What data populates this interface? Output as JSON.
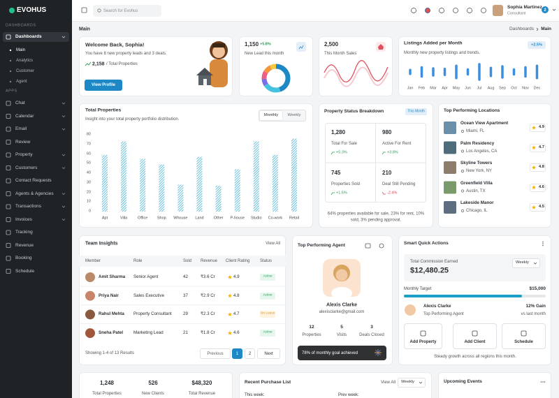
{
  "sidebar": {
    "logo": "EVOHUS",
    "dashboards_label": "DASHBOARDS",
    "dashboards": "Dashboards",
    "dashboard_items": [
      "Main",
      "Analytics",
      "Customer",
      "Agent"
    ],
    "apps_label": "APPS",
    "apps": [
      "Chat",
      "Calendar",
      "Email",
      "Review",
      "Property",
      "Customers",
      "Contact Requests",
      "Agents & Agencies",
      "Transactions",
      "Invoices",
      "Tracking",
      "Revenue",
      "Booking",
      "Schedule"
    ]
  },
  "topbar": {
    "search_placeholder": "Search for Evohus",
    "user_name": "Sophia Martinez",
    "user_role": "Consultant",
    "notifications": 2
  },
  "breadcrumb": {
    "page_title": "Main",
    "trail": [
      "Dashboards",
      "Main"
    ]
  },
  "welcome": {
    "title": "Welcome Back, Sophia!",
    "message": "You have 8 new property leads and 3 deals.",
    "total": "2,158",
    "total_label": "/ Total Properties",
    "button": "View Profile"
  },
  "new_leads": {
    "value": "1,150",
    "change": "+5.8%",
    "label": "New Lead this month"
  },
  "sales": {
    "value": "2,500",
    "label": "This Month Sales"
  },
  "chart_data": [
    {
      "type": "bar",
      "title": "Listings Added per Month",
      "subtitle": "Monthly new property listings and trends.",
      "badge": "+2.5%",
      "categories": [
        "Jan",
        "Feb",
        "Mar",
        "Apr",
        "May",
        "Jun",
        "Jul",
        "Aug",
        "Sep",
        "Oct",
        "Nov",
        "Dec"
      ],
      "values": [
        30,
        55,
        45,
        40,
        70,
        35,
        85,
        50,
        65,
        35,
        55,
        70
      ],
      "color": "#3b8ee0"
    },
    {
      "type": "bar",
      "title": "Total Properties",
      "subtitle": "Insight into your total property portfolio distribution.",
      "toggle": [
        "Monthly",
        "Weekly"
      ],
      "categories": [
        "Apt",
        "Villa",
        "Office",
        "Shop",
        "Whouse",
        "Land",
        "Other",
        "P-house",
        "Studio",
        "Co-work",
        "Retail"
      ],
      "values": [
        59,
        73,
        55,
        49,
        28,
        57,
        27,
        44,
        73,
        59,
        76
      ],
      "ylim": [
        0,
        80
      ],
      "yticks": [
        0,
        10,
        20,
        30,
        40,
        50,
        60,
        70,
        80
      ],
      "color": "#2aa7cf"
    }
  ],
  "status": {
    "title": "Property Status Breakdown",
    "badge": "This Month",
    "stats": [
      {
        "value": "1,280",
        "label": "Total For Sale",
        "change": "+5.3%"
      },
      {
        "value": 980,
        "label": "Active For Rent",
        "change": "+3.8%"
      },
      {
        "value": 745,
        "label": "Properties Sold",
        "change": "+1.5%"
      },
      {
        "value": 210,
        "label": "Deal Still Pending",
        "change": "-2.4%"
      }
    ],
    "note": "64% properties available for sale, 23% for rent, 10% sold, 3% pending approval."
  },
  "locations": {
    "title": "Top Performing Locations",
    "items": [
      {
        "name": "Ocean View Apartment",
        "location": "Miami, FL",
        "rating": 4.9
      },
      {
        "name": "Palm Residency",
        "location": "Los Angeles, CA",
        "rating": 4.7
      },
      {
        "name": "Skyline Towers",
        "location": "New York, NY",
        "rating": 4.8
      },
      {
        "name": "Greenfield Villa",
        "location": "Austin, TX",
        "rating": 4.6
      },
      {
        "name": "Lakeside Manor",
        "location": "Chicago, IL",
        "rating": 4.5
      }
    ]
  },
  "team": {
    "title": "Team Insights",
    "view_all": "View All",
    "columns": [
      "Member",
      "Role",
      "Sold",
      "Revenue",
      "Client Rating",
      "Status"
    ],
    "rows": [
      {
        "member": "Amit Sharma",
        "role": "Senior Agent",
        "sold": 42,
        "revenue": "₹3.6 Cr",
        "rating": 4.9,
        "status": "Active"
      },
      {
        "member": "Priya Nair",
        "role": "Sales Executive",
        "sold": 37,
        "revenue": "₹2.9 Cr",
        "rating": 4.8,
        "status": "Active"
      },
      {
        "member": "Rahul Mehta",
        "role": "Property Consultant",
        "sold": 29,
        "revenue": "₹2.3 Cr",
        "rating": 4.7,
        "status": "On Leave"
      },
      {
        "member": "Sneha Patel",
        "role": "Marketing Lead",
        "sold": 21,
        "revenue": "₹1.8 Cr",
        "rating": 4.6,
        "status": "Active"
      }
    ],
    "summary": "Showing 1-4 of 13 Results",
    "previous": "Previous",
    "pages": [
      1,
      2
    ],
    "next": "Next"
  },
  "agent": {
    "title": "Top Performing Agent",
    "name": "Alexis Clarke",
    "email": "alexisclarke@gmail.com",
    "stats": [
      {
        "value": 12,
        "label": "Properties"
      },
      {
        "value": 5,
        "label": "Visits"
      },
      {
        "value": 3,
        "label": "Deals Closed"
      }
    ],
    "goal": "78% of monthly goal achieved"
  },
  "quick": {
    "title": "Smart Quick Actions",
    "commission_label": "Total Commission Earned",
    "commission": "$12,480.25",
    "period": "Weekly",
    "target_label": "Monthly Target",
    "target": "$15,000",
    "agent_name": "Alexis Clarke",
    "agent_role": "Top Performing Agent",
    "gain": "12% Gain",
    "gain_note": "vs last month",
    "actions": [
      "Add Property",
      "Add Client",
      "Schedule"
    ],
    "footer": "Steady growth across all regions this month."
  },
  "summary": {
    "items": [
      {
        "value": "1,248",
        "label": "Total Properties"
      },
      {
        "value": 526,
        "label": "New Clients"
      },
      {
        "value": "$48,320",
        "label": "Total Revenue"
      }
    ]
  },
  "purchases": {
    "title": "Recent Purchase List",
    "view_all": "View All",
    "period": "Weekly",
    "this_week": "This week:",
    "prev_week": "Prev week:"
  },
  "events": {
    "title": "Upcoming Events"
  }
}
